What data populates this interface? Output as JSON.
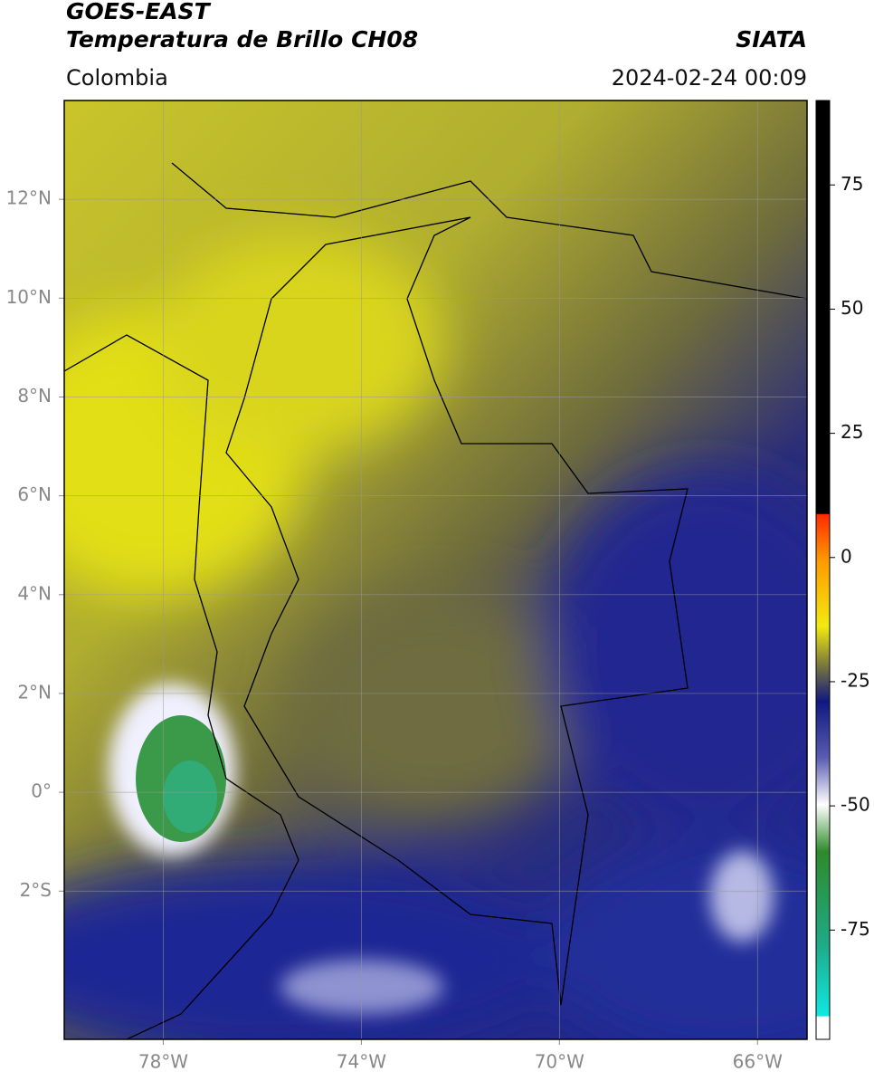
{
  "header": {
    "title": "GOES-EAST",
    "subtitle": "Temperatura de Brillo CH08",
    "source": "SIATA",
    "region": "Colombia",
    "datetime": "2024-02-24 00:09"
  },
  "map": {
    "xlim": [
      -80,
      -65
    ],
    "ylim": [
      -5,
      14
    ],
    "xticks": [
      {
        "value": -78,
        "label": "78°W"
      },
      {
        "value": -74,
        "label": "74°W"
      },
      {
        "value": -70,
        "label": "70°W"
      },
      {
        "value": -66,
        "label": "66°W"
      }
    ],
    "yticks": [
      {
        "value": 12,
        "label": "12°N"
      },
      {
        "value": 10,
        "label": "10°N"
      },
      {
        "value": 8,
        "label": "8°N"
      },
      {
        "value": 6,
        "label": "6°N"
      },
      {
        "value": 4,
        "label": "4°N"
      },
      {
        "value": 2,
        "label": "2°N"
      },
      {
        "value": 0,
        "label": "0°"
      },
      {
        "value": -2,
        "label": "2°S"
      }
    ],
    "grid": true
  },
  "colorbar": {
    "lim": [
      -97,
      92
    ],
    "ticks": [
      75,
      50,
      25,
      0,
      -25,
      -50,
      -75
    ]
  }
}
